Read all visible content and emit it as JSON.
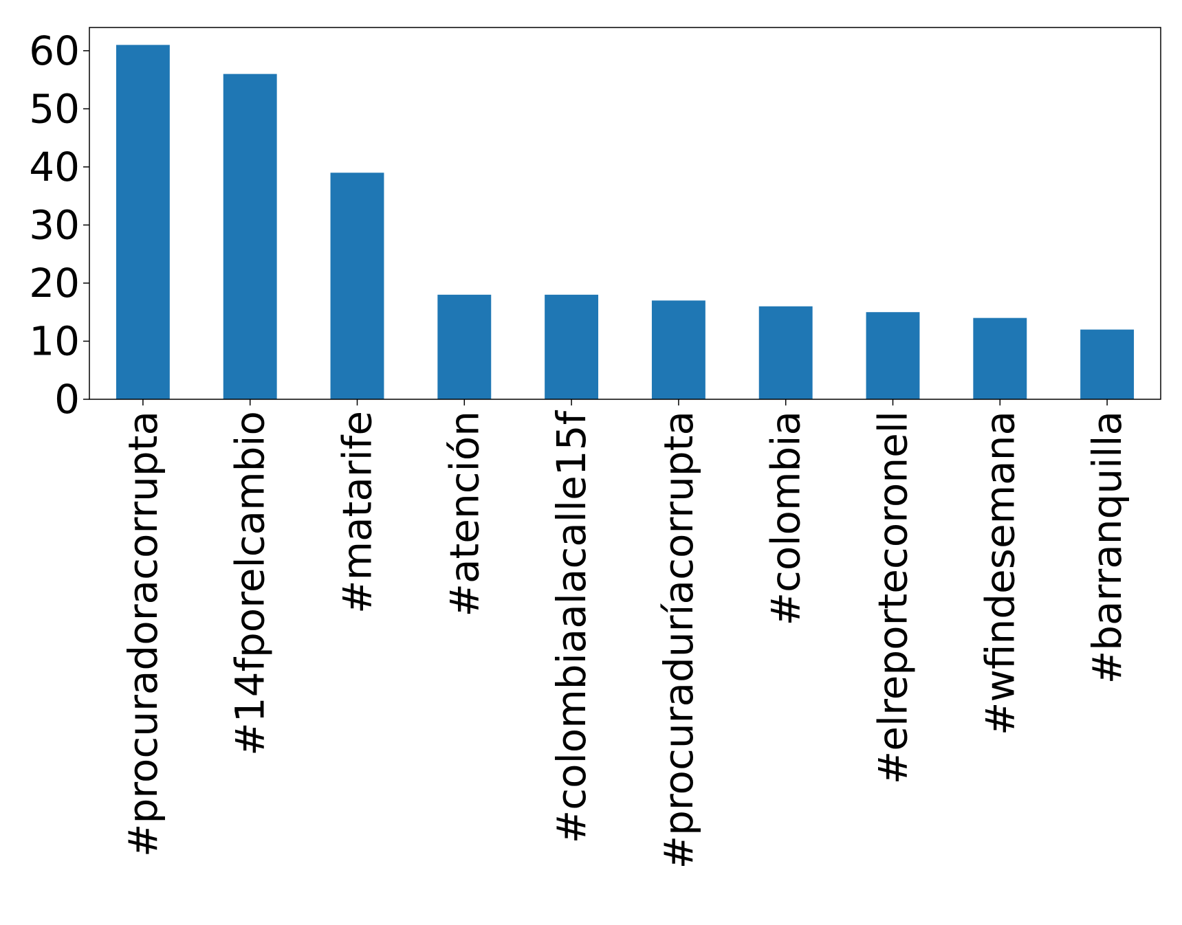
{
  "chart_data": {
    "type": "bar",
    "title": "",
    "xlabel": "",
    "ylabel": "",
    "categories": [
      "#procuradoracorrupta",
      "#14fporelcambio",
      "#matarife",
      "#atención",
      "#colombiaalacalle15f",
      "#procuraduríacorrupta",
      "#colombia",
      "#elreportecoronell",
      "#wfindesemana",
      "#barranquilla"
    ],
    "values": [
      61,
      56,
      39,
      18,
      18,
      17,
      16,
      15,
      14,
      12
    ],
    "ylim": [
      0,
      64
    ],
    "yticks": [
      0,
      10,
      20,
      30,
      40,
      50,
      60
    ],
    "grid": false,
    "legend": "none",
    "bar_color": "#1f77b4",
    "axis_color": "#000000"
  }
}
